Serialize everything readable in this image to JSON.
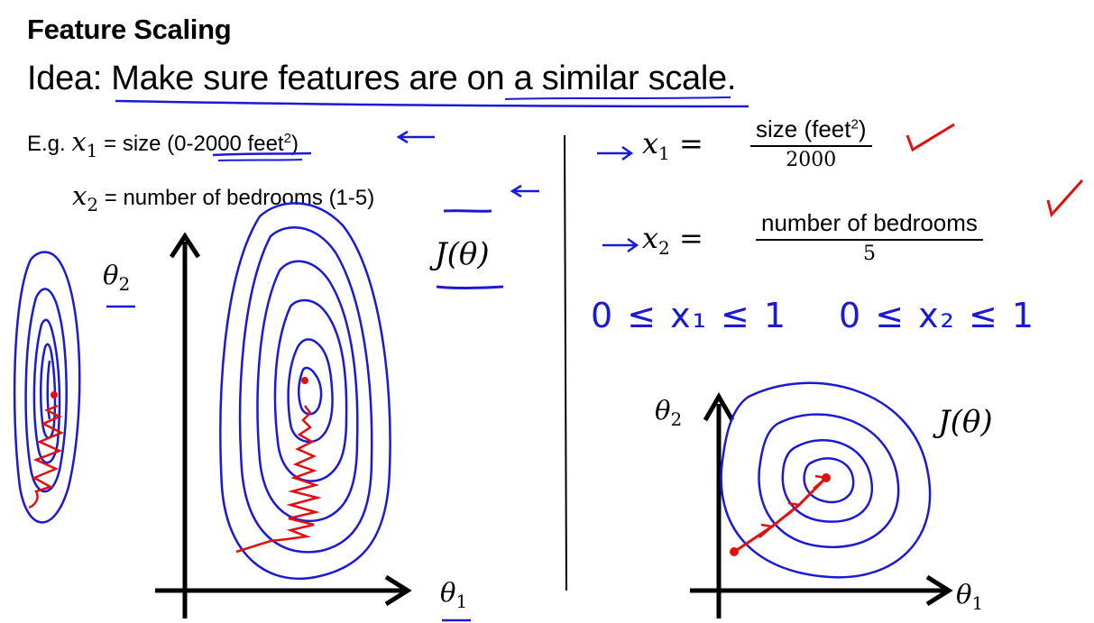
{
  "slide": {
    "title": "Feature Scaling",
    "idea_prefix": "Idea: ",
    "idea_statement": "Make sure features are on a similar scale."
  },
  "examples": {
    "eg_label": "E.g.",
    "x1_var": "x",
    "x1_sub": "1",
    "x1_desc": " = size (0-2000 feet",
    "x1_sup": "2",
    "x1_close": ")",
    "x2_var": "x",
    "x2_sub": "2",
    "x2_desc": " = number of bedrooms (1-5)"
  },
  "left_plot": {
    "y_axis_label": "θ",
    "y_axis_sub": "2",
    "x_axis_label": "θ",
    "x_axis_sub": "1",
    "cost_label": "J(θ)"
  },
  "scaled": {
    "x1_lhs_var": "x",
    "x1_lhs_sub": "1",
    "x1_eq": " =",
    "x1_numerator": "size (feet",
    "x1_numerator_sup": "2",
    "x1_numerator_close": ")",
    "x1_denominator": "2000",
    "x2_lhs_var": "x",
    "x2_lhs_sub": "2",
    "x2_eq": " =",
    "x2_numerator": "number of bedrooms",
    "x2_denominator": "5",
    "ineq1": "0 ≤ x₁ ≤ 1",
    "ineq2": "0 ≤ x₂ ≤ 1"
  },
  "right_plot": {
    "y_axis_label": "θ",
    "y_axis_sub": "2",
    "x_axis_label": "θ",
    "x_axis_sub": "1",
    "cost_label": "J(θ)"
  },
  "colors": {
    "ink_blue": "#1a1ad6",
    "ink_red": "#e01010",
    "text": "#000000"
  }
}
